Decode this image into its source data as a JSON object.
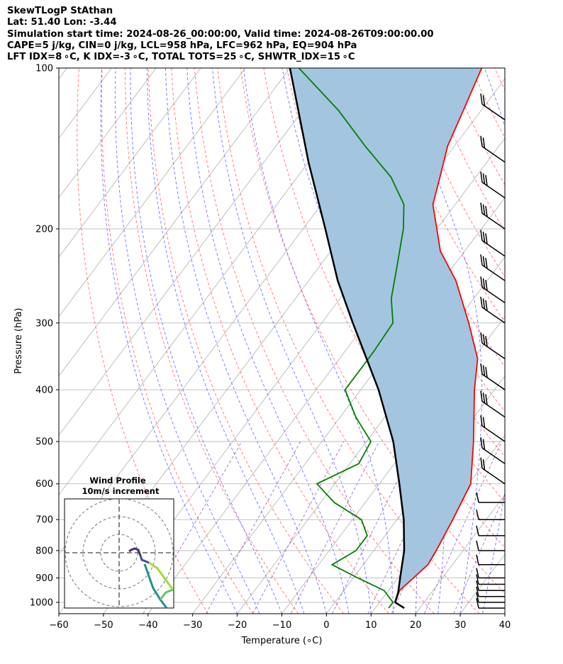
{
  "header": {
    "line1": "SkewTLogP StAthan",
    "line2": "Lat: 51.40   Lon: -3.44",
    "line3": "Simulation start time: 2024-08-26_00:00:00, Valid time: 2024-08-26T09:00:00.00",
    "line4": "CAPE=5 j/kg, CIN=0 j/kg, LCL=958 hPa, LFC=962 hPa, EQ=904 hPa",
    "line5": "LFT IDX=8 ∘C, K IDX=-3 ∘C, TOTAL TOTS=25 ∘C, SHWTR_IDX=15 ∘C"
  },
  "chart_data": {
    "type": "line",
    "xlabel": "Temperature (∘C)",
    "ylabel": "Pressure (hPa)",
    "xlim": [
      -60,
      40
    ],
    "ylim": [
      1050,
      100
    ],
    "y_scale": "log",
    "skew": true,
    "x_ticks": [
      -60,
      -50,
      -40,
      -30,
      -20,
      -10,
      0,
      10,
      20,
      30,
      40
    ],
    "x_tick_labels": [
      "−60",
      "−50",
      "−40",
      "−30",
      "−20",
      "−10",
      "0",
      "10",
      "20",
      "30",
      "40"
    ],
    "y_ticks": [
      1000,
      900,
      800,
      700,
      600,
      500,
      400,
      300,
      200,
      100
    ],
    "y_tick_labels": [
      "1000",
      "900",
      "800",
      "700",
      "600",
      "500",
      "400",
      "300",
      "200",
      "100"
    ],
    "grid": true,
    "colors": {
      "temperature": "#ff0000",
      "dewpoint": "#008000",
      "parcel": "#000000",
      "cape_fill": "#a3c5e0",
      "dry_adiabats": "#ff6666",
      "moist_adiabats": "#6666ff",
      "mixing_ratio": "#8f4dbf",
      "isotherms": "#b0b0b0"
    },
    "series": [
      {
        "key": "temperature",
        "points": [
          [
            1025,
            16.5
          ],
          [
            1000,
            13.5
          ],
          [
            950,
            12.5
          ],
          [
            900,
            13.5
          ],
          [
            850,
            14.5
          ],
          [
            800,
            14.0
          ],
          [
            700,
            12.5
          ],
          [
            600,
            10.5
          ],
          [
            500,
            4.0
          ],
          [
            400,
            -4.5
          ],
          [
            350,
            -9.0
          ],
          [
            300,
            -17.0
          ],
          [
            250,
            -27.0
          ],
          [
            220,
            -35.5
          ],
          [
            200,
            -40.0
          ],
          [
            180,
            -45.0
          ],
          [
            160,
            -48.0
          ],
          [
            140,
            -51.5
          ],
          [
            120,
            -54.0
          ],
          [
            100,
            -57.0
          ]
        ]
      },
      {
        "key": "dewpoint",
        "points": [
          [
            1025,
            13.0
          ],
          [
            1000,
            13.0
          ],
          [
            950,
            9.0
          ],
          [
            900,
            1.0
          ],
          [
            850,
            -7.0
          ],
          [
            800,
            -4.0
          ],
          [
            750,
            -4.0
          ],
          [
            700,
            -8.0
          ],
          [
            650,
            -17.0
          ],
          [
            600,
            -24.0
          ],
          [
            550,
            -18.0
          ],
          [
            500,
            -19.0
          ],
          [
            450,
            -26.5
          ],
          [
            400,
            -33.5
          ],
          [
            370,
            -33.5
          ],
          [
            340,
            -33.5
          ],
          [
            300,
            -34.0
          ],
          [
            270,
            -38.5
          ],
          [
            240,
            -42.0
          ],
          [
            200,
            -47.5
          ],
          [
            180,
            -51.5
          ],
          [
            160,
            -59.0
          ],
          [
            140,
            -70.0
          ],
          [
            120,
            -82.0
          ],
          [
            100,
            -98.0
          ]
        ]
      },
      {
        "key": "parcel",
        "points": [
          [
            1025,
            16.5
          ],
          [
            1000,
            13.5
          ],
          [
            958,
            12.5
          ],
          [
            900,
            10.5
          ],
          [
            800,
            6.8
          ],
          [
            700,
            1.5
          ],
          [
            600,
            -5.5
          ],
          [
            500,
            -14.0
          ],
          [
            400,
            -26.0
          ],
          [
            300,
            -43.0
          ],
          [
            250,
            -53.5
          ],
          [
            200,
            -65.0
          ],
          [
            150,
            -80.0
          ],
          [
            100,
            -100.0
          ]
        ]
      }
    ],
    "wind_barbs_pressure": [
      1025,
      1000,
      975,
      950,
      925,
      900,
      850,
      800,
      750,
      700,
      650,
      600,
      550,
      500,
      450,
      400,
      350,
      300,
      275,
      250,
      225,
      200,
      175,
      150,
      125,
      100
    ],
    "inset": {
      "title": "Wind Profile",
      "subtitle": "10m/s increment",
      "rings": [
        10,
        20,
        30
      ]
    }
  }
}
